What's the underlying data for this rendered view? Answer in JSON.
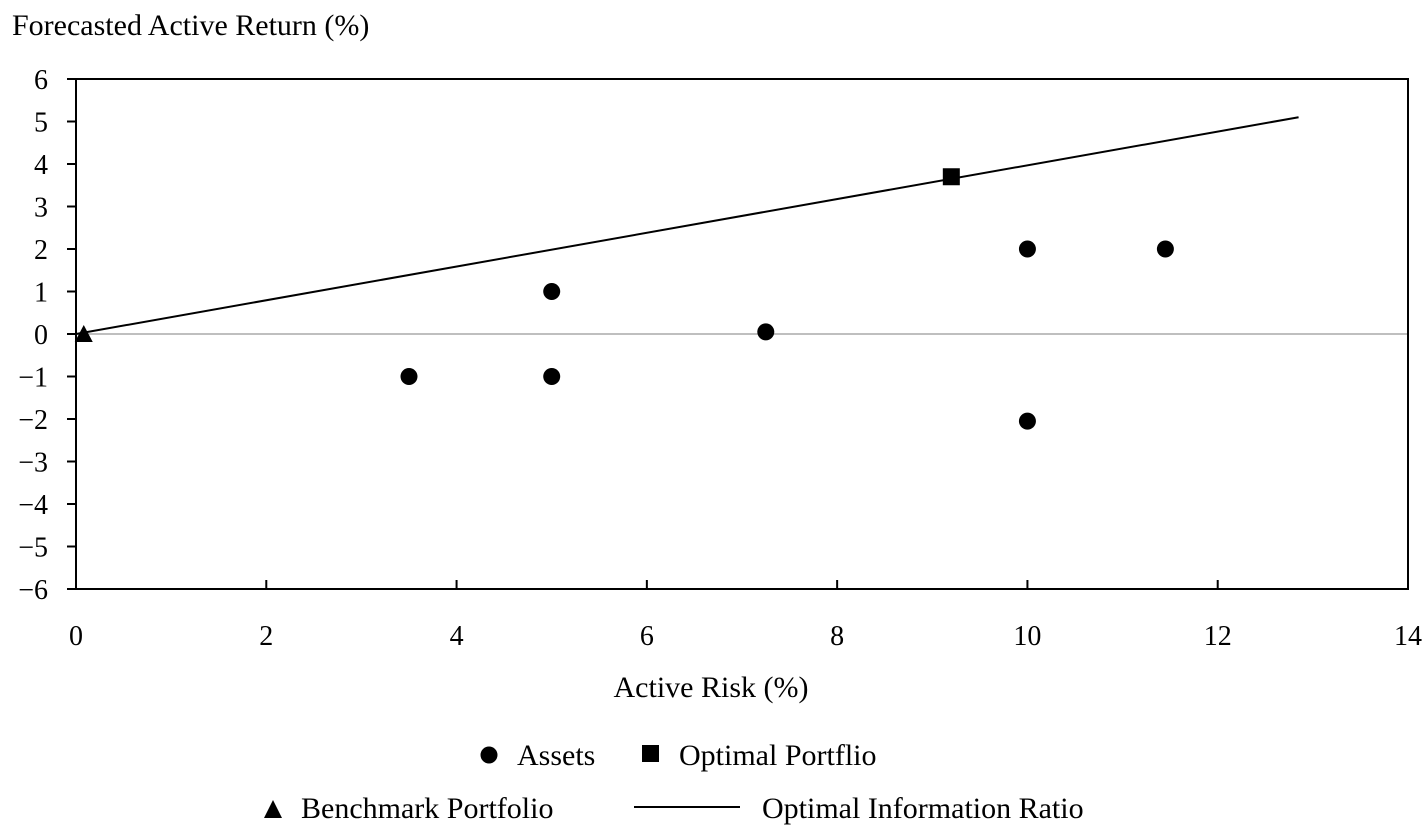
{
  "chart_data": {
    "type": "scatter",
    "ylabel": "Forecasted Active Return (%)",
    "xlabel": "Active Risk (%)",
    "xlim": [
      0,
      14
    ],
    "ylim": [
      -6,
      6
    ],
    "xticks": [
      0,
      2,
      4,
      6,
      8,
      10,
      12,
      14
    ],
    "yticks": [
      6,
      5,
      4,
      3,
      2,
      1,
      0,
      -1,
      -2,
      -3,
      -4,
      -5,
      -6
    ],
    "ytick_labels": [
      "6",
      "5",
      "4",
      "3",
      "2",
      "1",
      "0",
      "−1",
      "−2",
      "−3",
      "−4",
      "−5",
      "−6"
    ],
    "grid": false,
    "zero_line": true,
    "series": [
      {
        "name": "Assets",
        "marker": "circle",
        "points": [
          [
            3.5,
            -1.0
          ],
          [
            5.0,
            1.0
          ],
          [
            5.0,
            -1.0
          ],
          [
            7.25,
            0.05
          ],
          [
            10.0,
            2.0
          ],
          [
            10.0,
            -2.05
          ],
          [
            11.45,
            2.0
          ]
        ]
      },
      {
        "name": "Optimal Portflio",
        "marker": "square",
        "points": [
          [
            9.2,
            3.7
          ]
        ]
      },
      {
        "name": "Benchmark Portfolio",
        "marker": "triangle",
        "points": [
          [
            0.05,
            0.0
          ]
        ]
      },
      {
        "name": "Optimal Information Ratio",
        "marker": "line",
        "points": [
          [
            0.0,
            0.0
          ],
          [
            12.85,
            5.1
          ]
        ]
      }
    ],
    "legend_position": "bottom",
    "colors": {
      "marker": "#000000",
      "zero_line": "#bfbfbf",
      "axis": "#000000"
    }
  }
}
